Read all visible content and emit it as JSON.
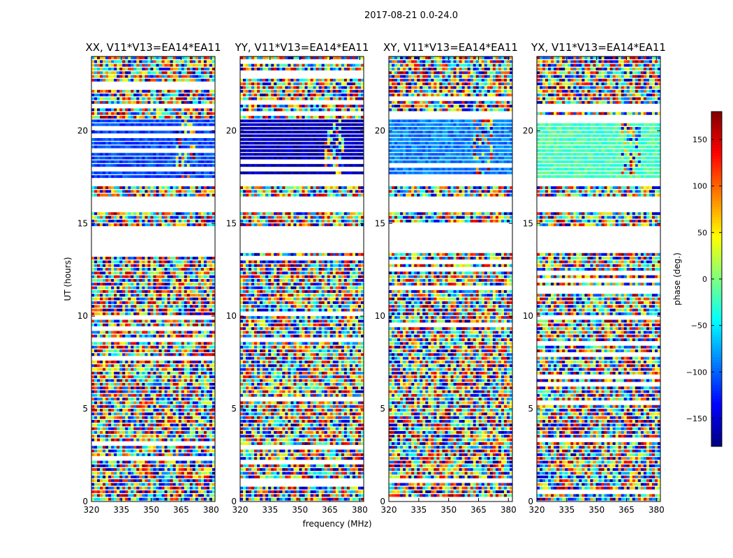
{
  "chart_data": {
    "type": "heatmap",
    "suptitle": "2017-08-21 0.0-24.0",
    "xlabel": "frequency (MHz)",
    "ylabel": "UT (hours)",
    "xlim": [
      320,
      382
    ],
    "ylim": [
      0,
      24
    ],
    "xticks": [
      320,
      335,
      350,
      365,
      380
    ],
    "yticks": [
      0,
      5,
      10,
      15,
      20
    ],
    "colorbar": {
      "label": "phase (deg.)",
      "range": [
        -180,
        180
      ],
      "ticks": [
        150,
        100,
        50,
        0,
        -50,
        -100,
        -150
      ],
      "colormap": "jet"
    },
    "panels": [
      {
        "title": "XX, V11*V13=EA14*EA11",
        "pol": "XX"
      },
      {
        "title": "YY, V11*V13=EA14*EA11",
        "pol": "YY"
      },
      {
        "title": "XY, V11*V13=EA14*EA11",
        "pol": "XY"
      },
      {
        "title": "YX, V11*V13=EA14*EA11",
        "pol": "YX"
      }
    ],
    "blank_ut_ranges_hours": [
      [
        15.7,
        16.0
      ],
      [
        13.5,
        14.8
      ],
      [
        17.1,
        17.4
      ],
      [
        16.1,
        16.3
      ]
    ],
    "coherent_phase_regions": [
      {
        "pol": "XX",
        "ut": [
          17.5,
          20.5
        ],
        "phase_deg": -110
      },
      {
        "pol": "YY",
        "ut": [
          17.5,
          20.5
        ],
        "phase_deg": -160
      },
      {
        "pol": "XY",
        "ut": [
          17.5,
          20.5
        ],
        "phase_deg": -90
      },
      {
        "pol": "YX",
        "ut": [
          17.5,
          20.5
        ],
        "phase_deg": -20
      }
    ]
  }
}
